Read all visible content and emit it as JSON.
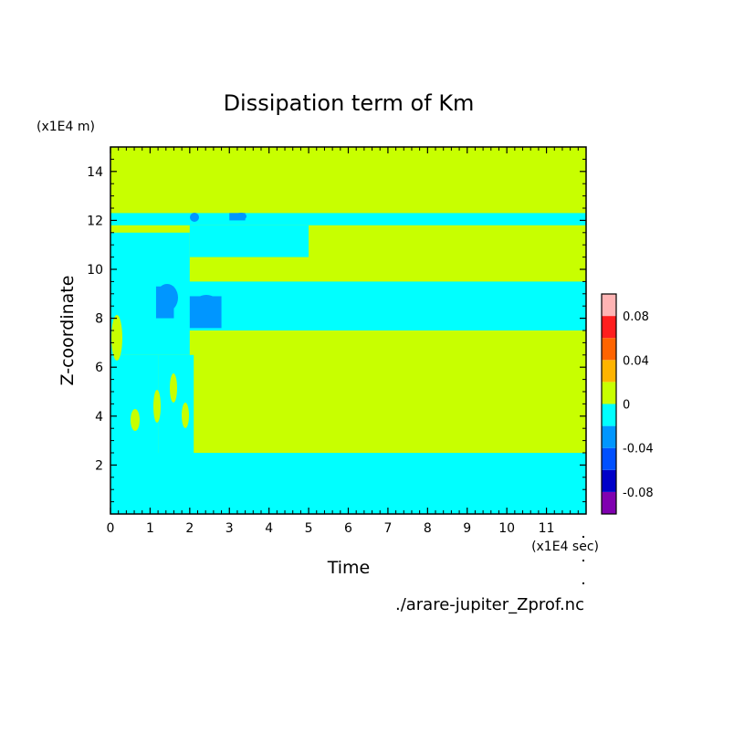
{
  "chart_data": {
    "type": "heatmap",
    "title": "Dissipation term of Km",
    "xlabel": "Time",
    "ylabel": "Z-coordinate",
    "x_unit": "(x1E4 sec)",
    "y_unit": "(x1E4 m)",
    "source_file": "./arare-jupiter_Zprof.nc",
    "xlim": [
      0,
      12
    ],
    "ylim": [
      0,
      15
    ],
    "x_ticks": [
      "0",
      "1",
      "2",
      "3",
      "4",
      "5",
      "6",
      "7",
      "8",
      "9",
      "10",
      "11"
    ],
    "y_ticks": [
      "2",
      "4",
      "6",
      "8",
      "10",
      "12",
      "14"
    ],
    "colorbar": {
      "labels": [
        "0.08",
        "0.04",
        "0",
        "-0.04",
        "-0.08"
      ],
      "label_values": [
        0.08,
        0.04,
        0,
        -0.04,
        -0.08
      ],
      "levels": [
        -0.1,
        -0.08,
        -0.06,
        -0.04,
        -0.02,
        0,
        0.02,
        0.04,
        0.06,
        0.08,
        0.1
      ],
      "colors": [
        "#8000b0",
        "#0000c8",
        "#0050ff",
        "#0096ff",
        "#00ffff",
        "#c8ff00",
        "#ffb400",
        "#ff6400",
        "#ff1e1e",
        "#ffb4b4"
      ]
    },
    "regions": [
      {
        "x": [
          0,
          12
        ],
        "y": [
          0,
          15
        ],
        "value": 0.005
      },
      {
        "x": [
          0,
          12
        ],
        "y": [
          0,
          2.5
        ],
        "value": -0.005
      },
      {
        "x": [
          0,
          1.2
        ],
        "y": [
          2.5,
          6.5
        ],
        "value": -0.005
      },
      {
        "x": [
          1.2,
          2.1
        ],
        "y": [
          2.5,
          6.5
        ],
        "value": -0.005
      },
      {
        "x": [
          0,
          12
        ],
        "y": [
          7.5,
          9.5
        ],
        "value": -0.005
      },
      {
        "x": [
          0,
          2
        ],
        "y": [
          6.5,
          11.5
        ],
        "value": -0.005
      },
      {
        "x": [
          0,
          12
        ],
        "y": [
          11.8,
          12.3
        ],
        "value": -0.005
      },
      {
        "x": [
          2,
          5
        ],
        "y": [
          10.5,
          11.8
        ],
        "value": -0.005
      },
      {
        "x": [
          1.15,
          1.6
        ],
        "y": [
          8,
          9.3
        ],
        "value": -0.025
      },
      {
        "x": [
          2,
          2.8
        ],
        "y": [
          7.6,
          8.9
        ],
        "value": -0.025
      },
      {
        "x": [
          3,
          3.4
        ],
        "y": [
          12,
          12.3
        ],
        "value": -0.025
      }
    ]
  }
}
